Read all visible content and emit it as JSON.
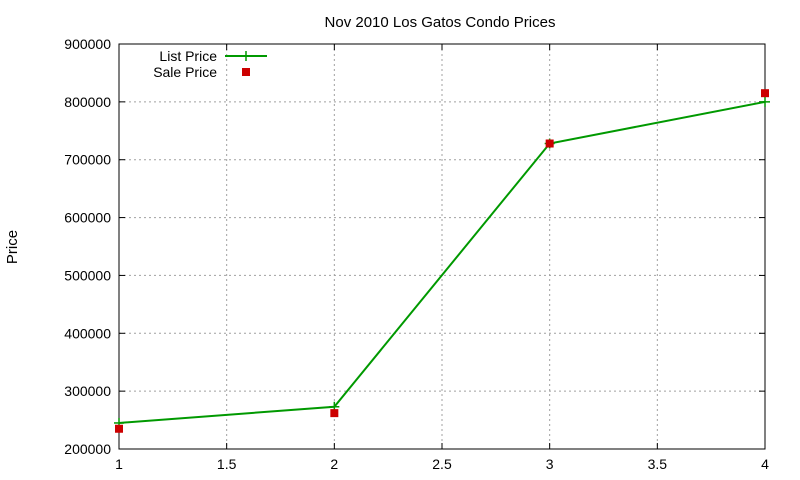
{
  "chart_data": {
    "type": "line",
    "title": "Nov 2010 Los Gatos Condo Prices",
    "xlabel": "",
    "ylabel": "Price",
    "xlim": [
      1,
      4
    ],
    "ylim": [
      200000,
      900000
    ],
    "x_ticks": [
      1,
      1.5,
      2,
      2.5,
      3,
      3.5,
      4
    ],
    "y_ticks": [
      200000,
      300000,
      400000,
      500000,
      600000,
      700000,
      800000,
      900000
    ],
    "grid": true,
    "legend_position": "top-left",
    "series": [
      {
        "name": "List Price",
        "style": "lines+points",
        "color": "#009900",
        "marker": "plus",
        "x": [
          1,
          2,
          3,
          4
        ],
        "y": [
          245000,
          273000,
          728000,
          800000
        ]
      },
      {
        "name": "Sale Price",
        "style": "points",
        "color": "#cc0000",
        "marker": "square",
        "x": [
          1,
          2,
          3,
          4
        ],
        "y": [
          235000,
          262000,
          728000,
          815000
        ]
      }
    ]
  }
}
